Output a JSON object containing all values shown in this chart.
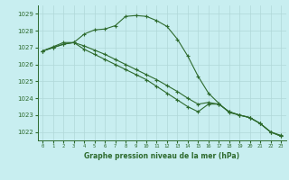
{
  "title": "Graphe pression niveau de la mer (hPa)",
  "bg_color": "#c8eef0",
  "grid_color": "#b0d8d8",
  "line_color": "#2d6a2d",
  "marker_color": "#2d6a2d",
  "xlim": [
    -0.5,
    23.5
  ],
  "ylim": [
    1021.5,
    1029.5
  ],
  "yticks": [
    1022,
    1023,
    1024,
    1025,
    1026,
    1027,
    1028,
    1029
  ],
  "xticks": [
    0,
    1,
    2,
    3,
    4,
    5,
    6,
    7,
    8,
    9,
    10,
    11,
    12,
    13,
    14,
    15,
    16,
    17,
    18,
    19,
    20,
    21,
    22,
    23
  ],
  "series1": [
    1026.8,
    1027.0,
    1027.2,
    1027.3,
    1027.8,
    1028.05,
    1028.1,
    1028.3,
    1028.85,
    1028.9,
    1028.85,
    1028.6,
    1028.25,
    1027.5,
    1026.5,
    1025.3,
    1024.3,
    1023.7,
    1023.15,
    1023.0,
    1022.85,
    1022.5,
    1022.0,
    1021.8
  ],
  "series2": [
    1026.8,
    1027.0,
    1027.2,
    1027.3,
    1026.9,
    1026.6,
    1026.3,
    1026.0,
    1025.7,
    1025.4,
    1025.1,
    1024.7,
    1024.3,
    1023.9,
    1023.5,
    1023.2,
    1023.65,
    1023.65,
    1023.2,
    1023.0,
    1022.85,
    1022.5,
    1022.0,
    1021.75
  ],
  "series3": [
    1026.8,
    1027.05,
    1027.3,
    1027.3,
    1027.1,
    1026.85,
    1026.6,
    1026.3,
    1026.0,
    1025.7,
    1025.4,
    1025.1,
    1024.75,
    1024.4,
    1024.0,
    1023.65,
    1023.75,
    1023.65,
    1023.2,
    1023.0,
    1022.85,
    1022.5,
    1022.0,
    1021.75
  ]
}
